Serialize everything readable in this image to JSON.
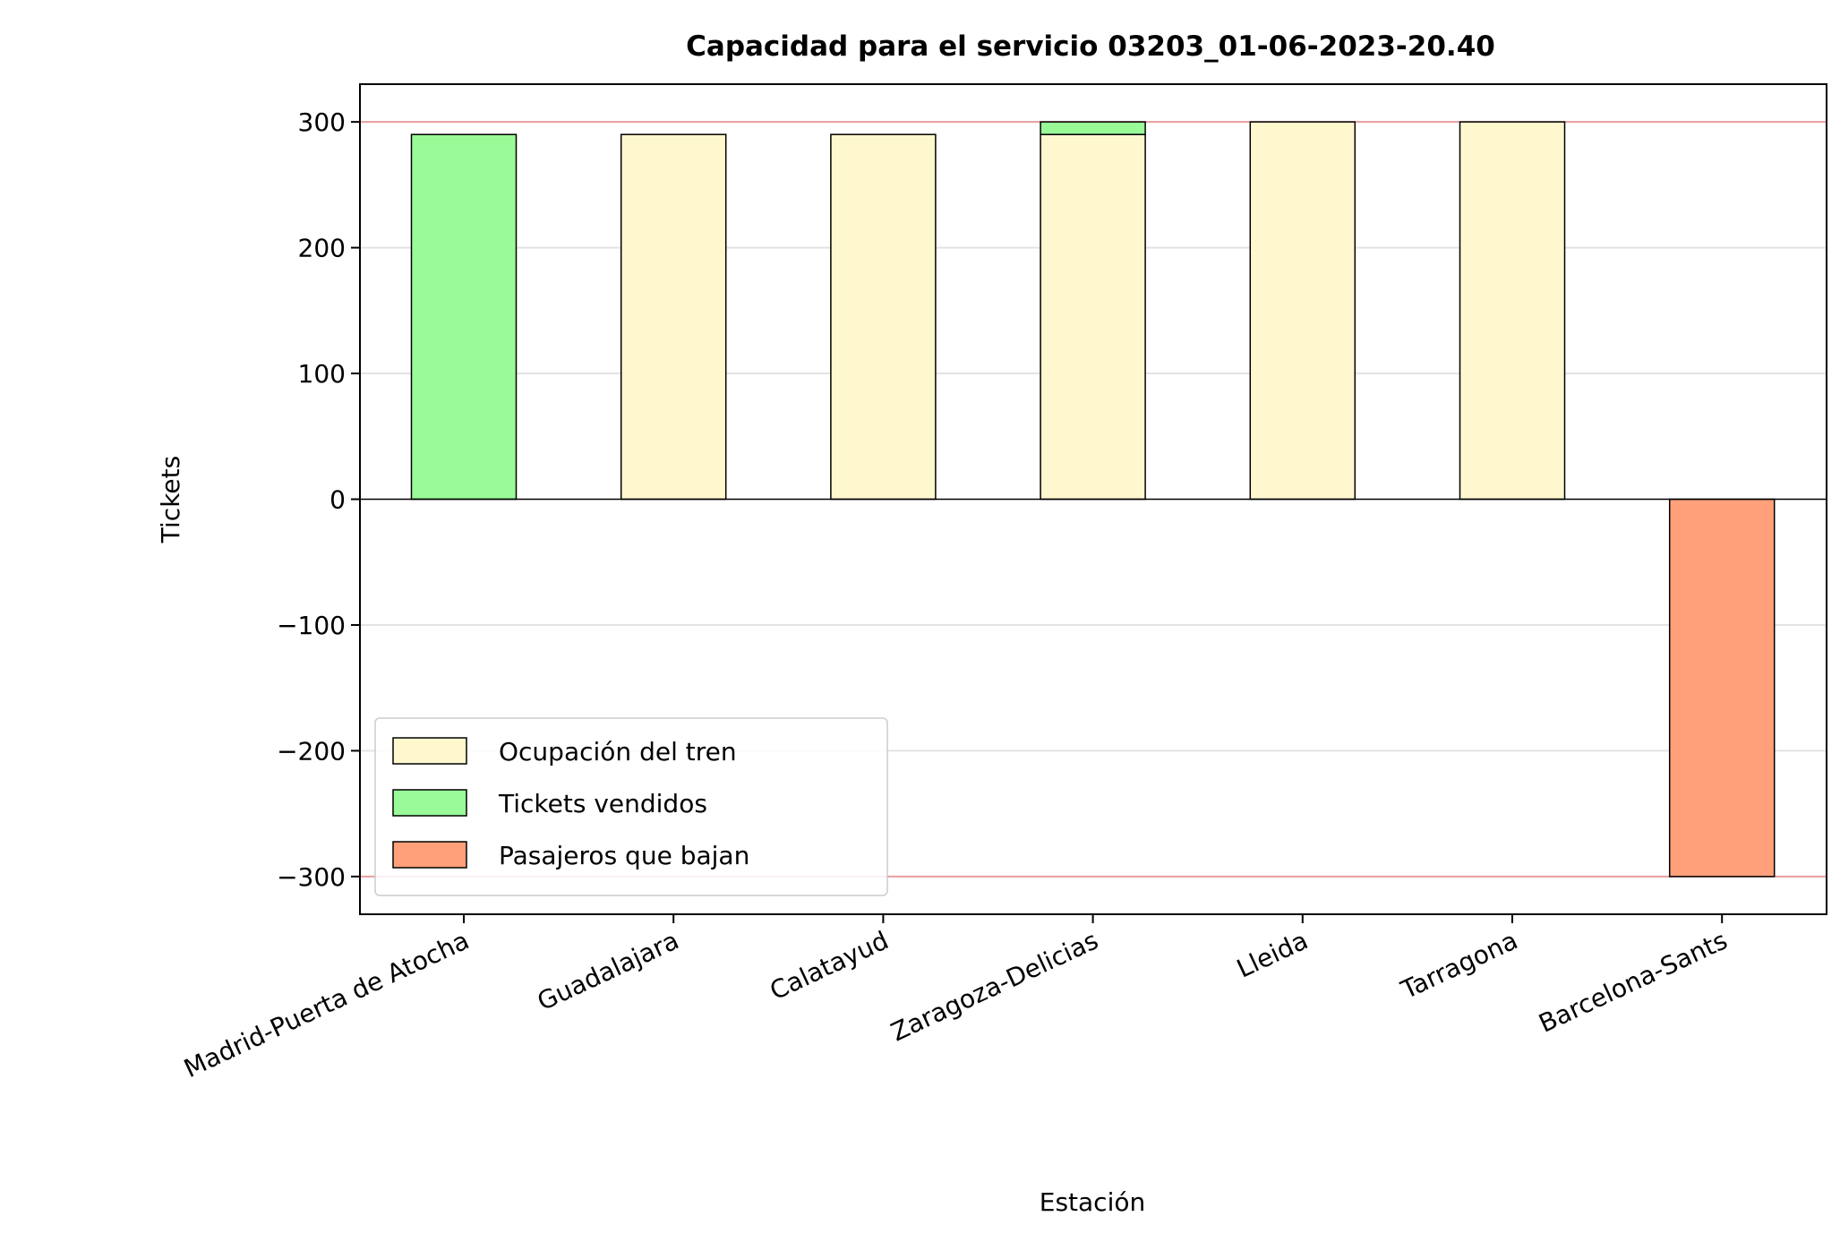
{
  "chart_data": {
    "type": "bar",
    "title": "Capacidad para el servicio 03203_01-06-2023-20.40",
    "xlabel": "Estación",
    "ylabel": "Tickets",
    "categories": [
      "Madrid-Puerta de Atocha",
      "Guadalajara",
      "Calatayud",
      "Zaragoza-Delicias",
      "Lleida",
      "Tarragona",
      "Barcelona-Sants"
    ],
    "ylim": [
      -330,
      330
    ],
    "yticks": [
      300,
      200,
      100,
      0,
      -100,
      -200,
      -300
    ],
    "ytick_labels": [
      "300",
      "200",
      "100",
      "0",
      "−100",
      "−200",
      "−300"
    ],
    "grid": "y",
    "capacity_lines": [
      300,
      -300
    ],
    "legend_position": "lower-left",
    "series": [
      {
        "name": "Ocupación del tren",
        "color": "#fff8cf",
        "values": [
          0,
          290,
          290,
          290,
          300,
          300,
          0
        ]
      },
      {
        "name": "Tickets vendidos",
        "color": "#99fa97",
        "values": [
          290,
          0,
          0,
          10,
          0,
          0,
          0
        ]
      },
      {
        "name": "Pasajeros que bajan",
        "color": "#ffa07a",
        "values": [
          0,
          0,
          0,
          0,
          0,
          0,
          -300
        ]
      }
    ],
    "colors": {
      "capacity_line": "#e8a0a0",
      "grid": "#e3e3e3",
      "edge": "#000000"
    }
  }
}
